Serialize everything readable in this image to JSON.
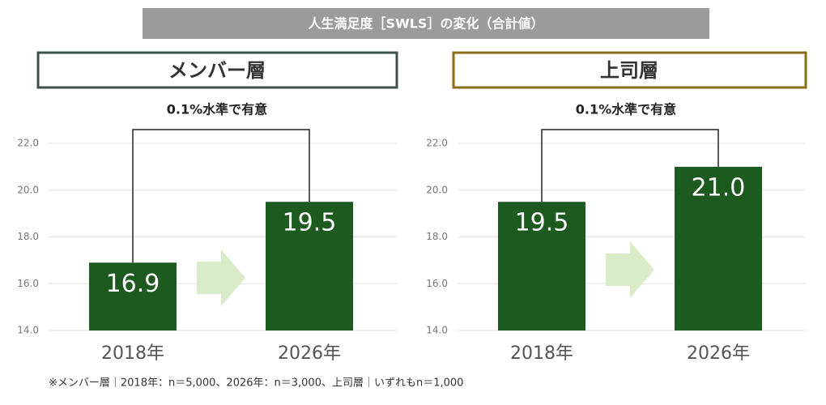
{
  "title": "人生満足度［SWLS］の変化（合計値）",
  "note": "※メンバー層｜2018年：n＝5,000、2026年：n＝3,000、上司層｜いずれもn＝1,000",
  "chart_data": [
    {
      "type": "bar",
      "title": "メンバー層",
      "frame_color": "#3f4f4b",
      "annotation": "0.1%水準で有意",
      "categories": [
        "2018年",
        "2026年"
      ],
      "values": [
        16.9,
        19.5
      ],
      "color": "#1d5a1f",
      "ylim": [
        14,
        22
      ],
      "yticks": [
        {
          "value": 14,
          "label": "14.0"
        },
        {
          "value": 16,
          "label": "16.0"
        },
        {
          "value": 18,
          "label": "18.0"
        },
        {
          "value": 20,
          "label": "20.0"
        },
        {
          "value": 22,
          "label": "22.0"
        }
      ],
      "grid": true
    },
    {
      "type": "bar",
      "title": "上司層",
      "frame_color": "#8a6c14",
      "annotation": "0.1%水準で有意",
      "categories": [
        "2018年",
        "2026年"
      ],
      "values": [
        19.5,
        21
      ],
      "value_labels": [
        "19.5",
        "21.0"
      ],
      "color": "#1d5a1f",
      "ylim": [
        14,
        22
      ],
      "yticks": [
        {
          "value": 14,
          "label": "14.0"
        },
        {
          "value": 16,
          "label": "16.0"
        },
        {
          "value": 18,
          "label": "18.0"
        },
        {
          "value": 20,
          "label": "20.0"
        },
        {
          "value": 22,
          "label": "22.0"
        }
      ],
      "grid": true
    }
  ]
}
